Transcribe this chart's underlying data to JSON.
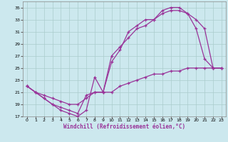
{
  "background_color": "#cce8ee",
  "grid_color": "#aacccc",
  "line_color": "#993399",
  "xlim": [
    -0.5,
    23.5
  ],
  "ylim": [
    17,
    36
  ],
  "xticks": [
    0,
    1,
    2,
    3,
    4,
    5,
    6,
    7,
    8,
    9,
    10,
    11,
    12,
    13,
    14,
    15,
    16,
    17,
    18,
    19,
    20,
    21,
    22,
    23
  ],
  "yticks": [
    17,
    19,
    21,
    23,
    25,
    27,
    29,
    31,
    33,
    35
  ],
  "xlabel": "Windchill (Refroidissement éolien,°C)",
  "x": [
    0,
    1,
    2,
    3,
    4,
    5,
    6,
    7,
    8,
    9,
    10,
    11,
    12,
    13,
    14,
    15,
    16,
    17,
    18,
    19,
    20,
    21,
    22,
    23
  ],
  "line1": [
    22,
    21,
    20,
    19,
    18,
    17.5,
    17,
    18,
    23.5,
    21,
    26,
    28,
    31,
    32,
    33,
    33,
    34.5,
    35,
    35,
    34,
    31.5,
    26.5,
    25,
    25
  ],
  "line2": [
    22,
    21,
    20,
    19,
    18.5,
    18,
    17.5,
    20.5,
    21,
    21,
    27,
    28.5,
    30,
    31.5,
    32,
    33,
    34,
    34.5,
    34.5,
    34,
    33,
    31.5,
    25,
    25
  ],
  "line3": [
    22,
    21,
    20.5,
    20,
    19.5,
    19,
    19,
    20,
    21,
    21,
    21,
    22,
    22.5,
    23,
    23.5,
    24,
    24,
    24.5,
    24.5,
    25,
    25,
    25,
    25,
    25
  ]
}
